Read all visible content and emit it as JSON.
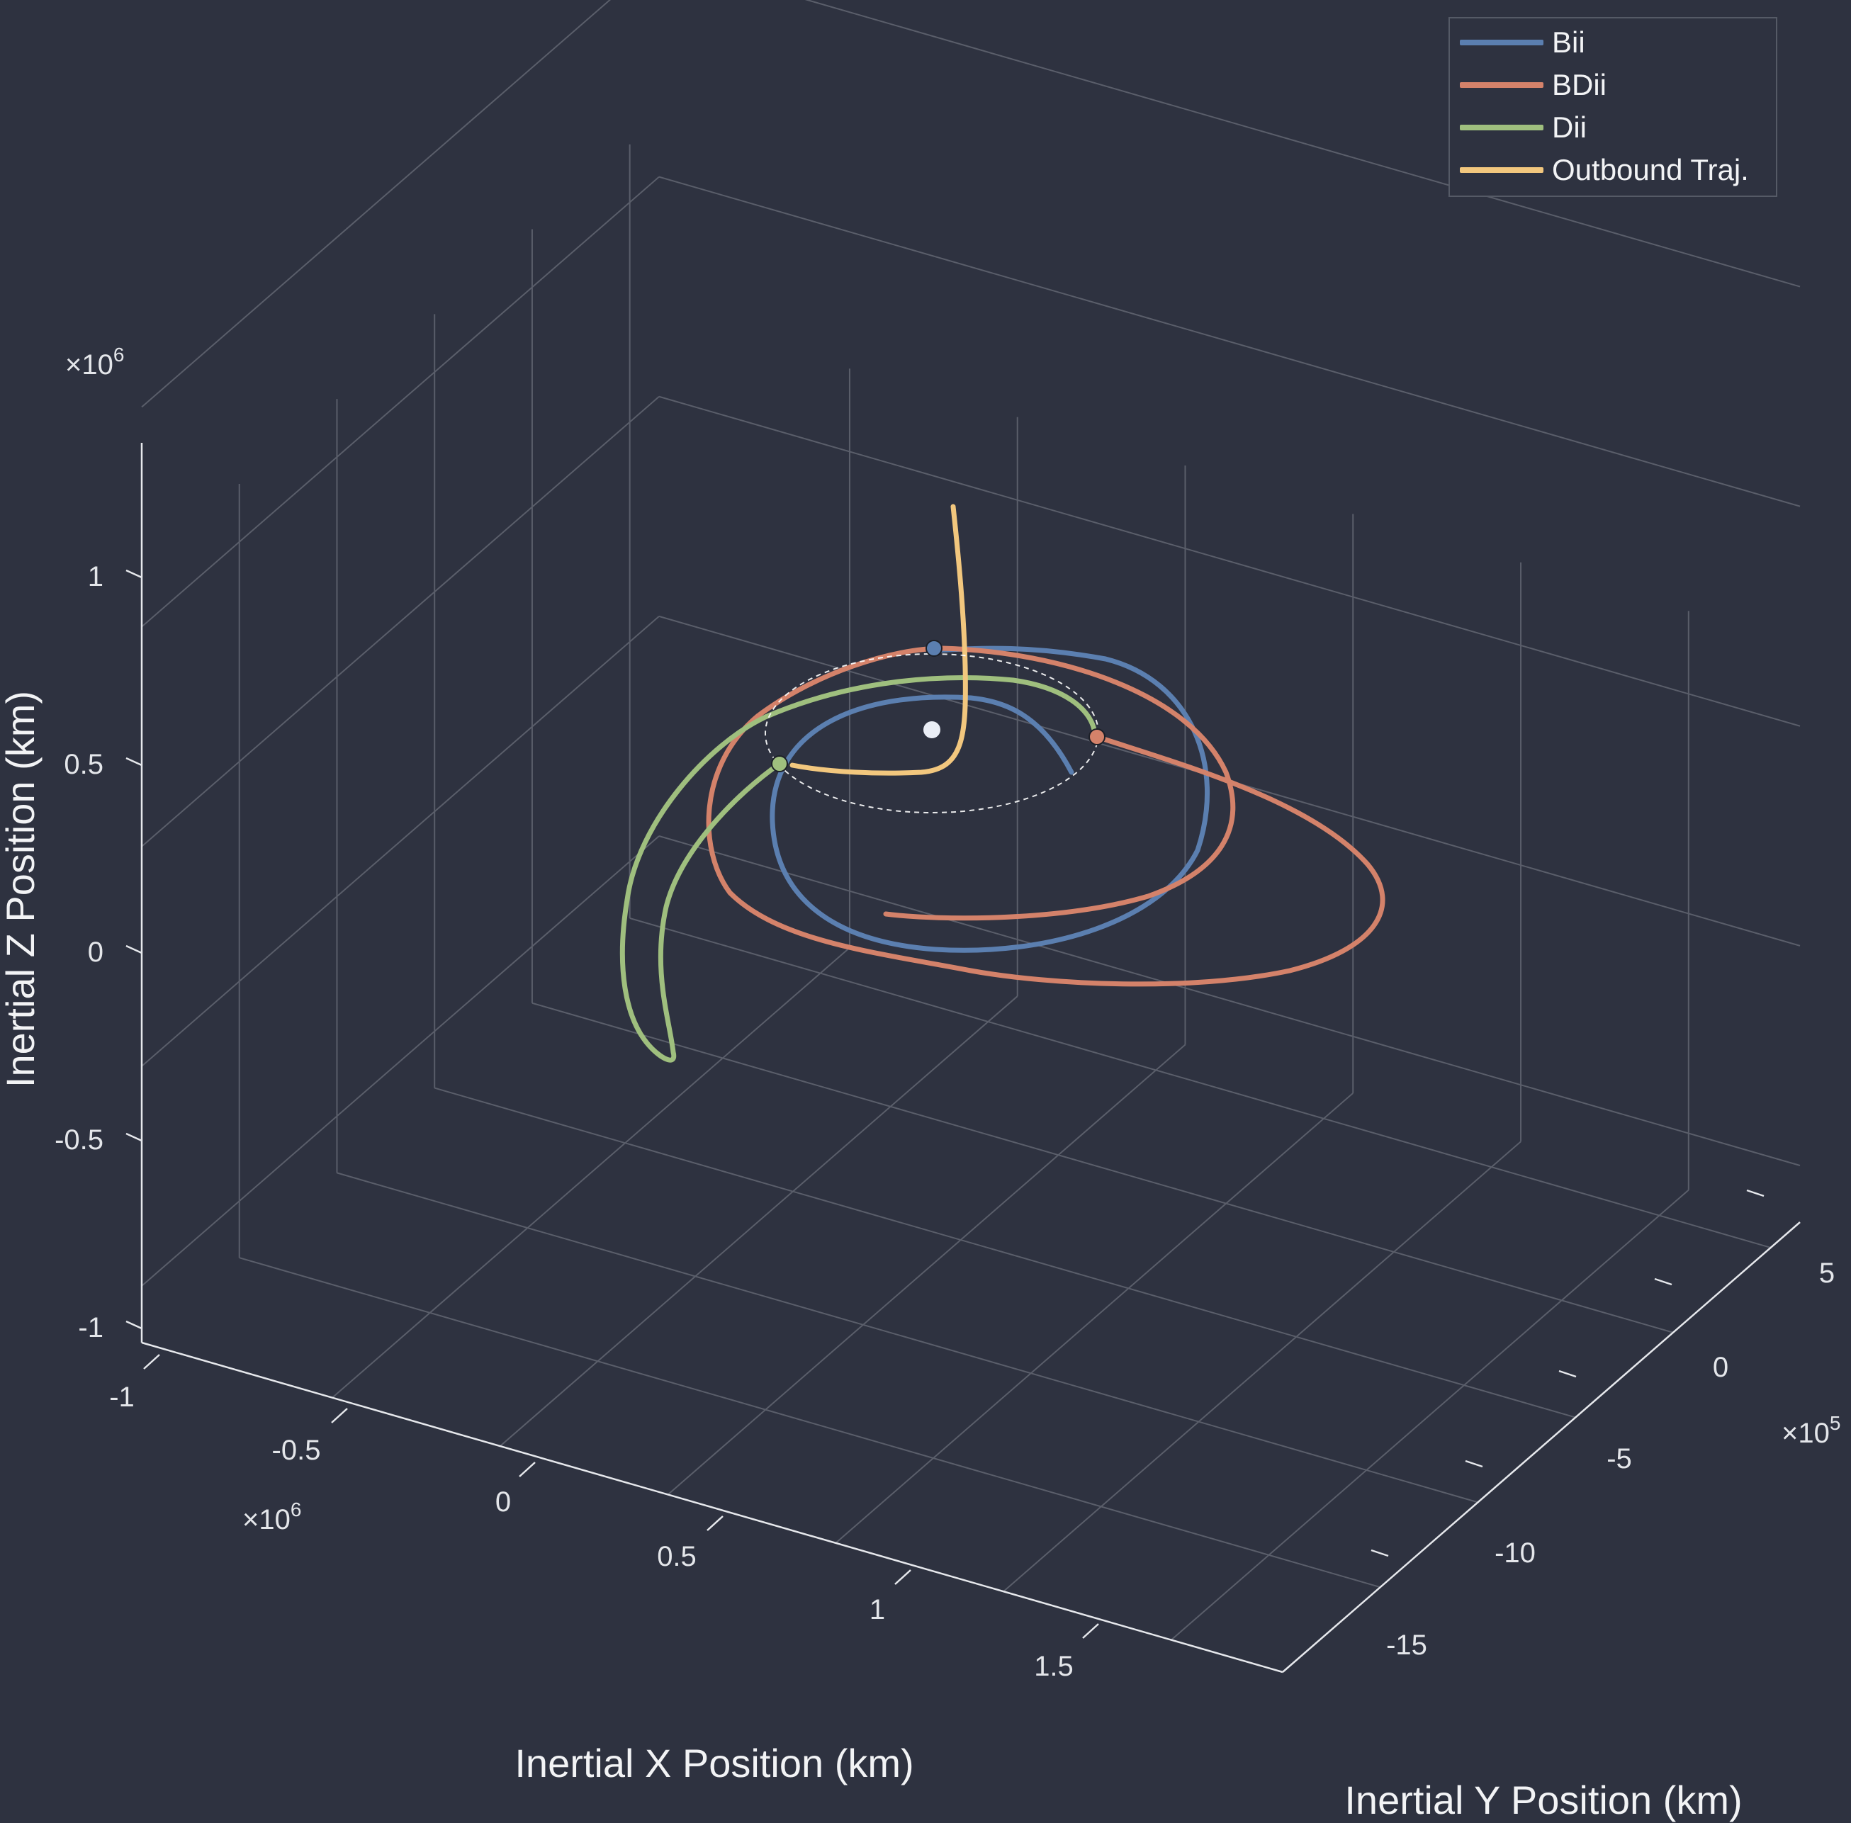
{
  "chart_data": {
    "type": "line",
    "projection": "3d",
    "title": "",
    "xlabel": "Inertial X Position (km)",
    "ylabel": "Inertial Y Position (km)",
    "zlabel": "Inertial Z Position (km)",
    "x_ticks": [
      "-1",
      "-0.5",
      "0",
      "0.5",
      "1",
      "1.5"
    ],
    "y_ticks": [
      "-15",
      "-10",
      "-5",
      "0",
      "5"
    ],
    "z_ticks": [
      "-1",
      "-0.5",
      "0",
      "0.5",
      "1"
    ],
    "x_exponent": "6",
    "y_exponent": "5",
    "z_exponent": "6",
    "xlim": [
      -1.05,
      1.9
    ],
    "ylim": [
      -17,
      7
    ],
    "zlim": [
      -1.05,
      1.35
    ],
    "grid": true,
    "legend_position": "top-right",
    "background": "#2e3240",
    "series": [
      {
        "name": "Bii",
        "color": "#5b7fb0",
        "points_xyz_1e6": [
          [
            0.7,
            0.3,
            0.52
          ],
          [
            0.68,
            0.05,
            0.49
          ],
          [
            0.63,
            -0.2,
            0.47
          ],
          [
            0.55,
            -0.45,
            0.46
          ],
          [
            0.42,
            -0.72,
            0.45
          ],
          [
            0.28,
            -0.9,
            0.45
          ],
          [
            0.1,
            -1.0,
            0.45
          ],
          [
            -0.05,
            -1.02,
            0.45
          ],
          [
            -0.22,
            -0.98,
            0.45
          ],
          [
            -0.38,
            -0.85,
            0.45
          ],
          [
            -0.48,
            -0.65,
            0.45
          ],
          [
            -0.52,
            -0.4,
            0.45
          ],
          [
            -0.48,
            -0.15,
            0.45
          ],
          [
            -0.4,
            0.05,
            0.45
          ],
          [
            -0.26,
            0.2,
            0.45
          ],
          [
            -0.1,
            0.3,
            0.45
          ],
          [
            0.05,
            0.33,
            0.45
          ]
        ],
        "marker": "start"
      },
      {
        "name": "BDii",
        "color": "#d4826a",
        "points_xyz_1e6": [
          [
            0.8,
            0.05,
            0.55
          ],
          [
            0.95,
            -0.35,
            0.48
          ],
          [
            1.1,
            -0.8,
            0.45
          ],
          [
            1.15,
            -1.2,
            0.45
          ],
          [
            1.0,
            -1.45,
            0.45
          ],
          [
            0.8,
            -1.6,
            0.45
          ],
          [
            0.5,
            -1.6,
            0.45
          ],
          [
            0.2,
            -1.4,
            0.45
          ],
          [
            -0.05,
            -1.25,
            0.45
          ],
          [
            -0.3,
            -1.05,
            0.45
          ],
          [
            -0.5,
            -0.8,
            0.45
          ],
          [
            -0.62,
            -0.5,
            0.45
          ],
          [
            -0.62,
            -0.15,
            0.45
          ],
          [
            -0.5,
            0.1,
            0.45
          ],
          [
            -0.3,
            0.25,
            0.45
          ],
          [
            -0.1,
            0.3,
            0.45
          ],
          [
            0.15,
            0.25,
            0.45
          ],
          [
            0.4,
            0.1,
            0.45
          ],
          [
            0.6,
            -0.1,
            0.45
          ],
          [
            0.75,
            -0.35,
            0.45
          ],
          [
            0.8,
            -0.6,
            0.45
          ],
          [
            0.75,
            -0.85,
            0.45
          ],
          [
            0.6,
            -1.05,
            0.45
          ],
          [
            0.4,
            -1.15,
            0.45
          ],
          [
            0.2,
            -1.2,
            0.45
          ]
        ],
        "marker": "start"
      },
      {
        "name": "Dii",
        "color": "#9fbf7e",
        "points_xyz_1e6": [
          [
            -0.35,
            0.05,
            0.52
          ],
          [
            -0.48,
            -0.1,
            0.4
          ],
          [
            -0.58,
            -0.2,
            0.2
          ],
          [
            -0.62,
            -0.25,
            0.0
          ],
          [
            -0.6,
            -0.25,
            -0.2
          ],
          [
            -0.55,
            -0.2,
            -0.28
          ],
          [
            -0.5,
            -0.15,
            -0.2
          ],
          [
            -0.5,
            -0.15,
            0.0
          ],
          [
            -0.48,
            -0.1,
            0.2
          ],
          [
            -0.4,
            0.0,
            0.4
          ],
          [
            -0.25,
            0.1,
            0.55
          ],
          [
            -0.05,
            0.15,
            0.63
          ],
          [
            0.15,
            0.1,
            0.63
          ],
          [
            0.35,
            0.0,
            0.6
          ],
          [
            0.5,
            -0.15,
            0.55
          ]
        ],
        "marker": "start"
      },
      {
        "name": "Outbound Traj.",
        "color": "#f2c77e",
        "points_xyz_1e6": [
          [
            0.0,
            0.05,
            1.2
          ],
          [
            0.02,
            0.03,
            1.0
          ],
          [
            0.04,
            0.0,
            0.8
          ],
          [
            0.03,
            -0.05,
            0.6
          ],
          [
            -0.05,
            -0.05,
            0.5
          ],
          [
            -0.2,
            0.0,
            0.48
          ],
          [
            -0.35,
            0.05,
            0.5
          ]
        ]
      }
    ],
    "reference_ellipse": {
      "style": "dashed",
      "color": "#ffffff"
    },
    "central_body": {
      "color": "#eaeef6"
    }
  },
  "legend": {
    "items": [
      {
        "label": "Bii",
        "color": "#5b7fb0"
      },
      {
        "label": "BDii",
        "color": "#d4826a"
      },
      {
        "label": "Dii",
        "color": "#9fbf7e"
      },
      {
        "label": "Outbound Traj.",
        "color": "#f2c77e"
      }
    ]
  }
}
